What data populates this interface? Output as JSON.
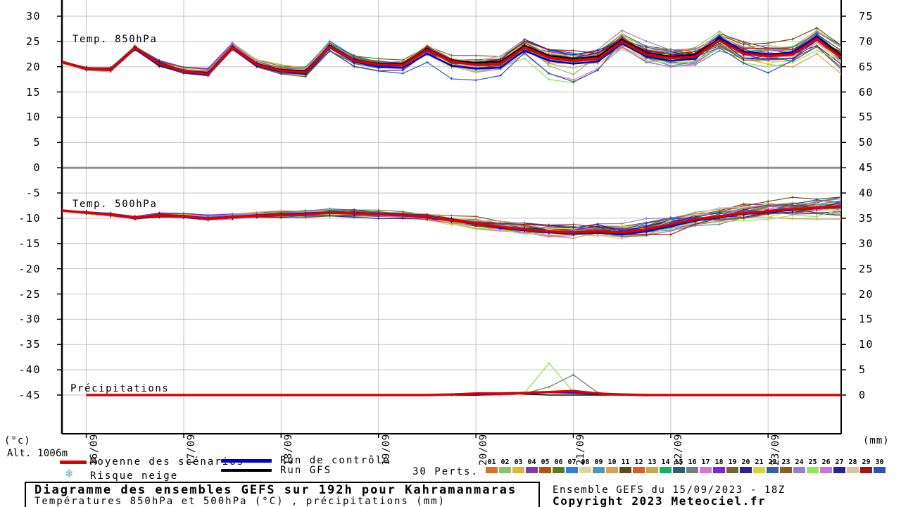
{
  "chart_data": {
    "type": "line",
    "title": "Diagramme des ensembles GEFS sur 192h pour Kahramanmaras",
    "subtitle": "Températures 850hPa et 500hPa (°C) , précipitations (mm)",
    "run_info": "Ensemble GEFS du 15/09/2023 - 18Z",
    "copyright": "Copyright 2023 Meteociel.fr",
    "alt_label": "Alt. 1006m",
    "x_axis": {
      "start": "15/09 18Z",
      "hours_step": 6,
      "hours_max": 192,
      "dates": [
        "16/09",
        "17/09",
        "18/09",
        "19/09",
        "20/09",
        "21/09",
        "22/09",
        "23/09"
      ]
    },
    "left_axis": {
      "unit": "(°c)",
      "ticks": [
        30,
        25,
        20,
        15,
        10,
        5,
        0,
        -5,
        -10,
        -15,
        -20,
        -25,
        -30,
        -35,
        -40,
        -45
      ]
    },
    "right_axis": {
      "unit": "(mm)",
      "ticks": [
        75,
        70,
        65,
        60,
        55,
        50,
        45,
        40,
        35,
        30,
        25,
        20,
        15,
        10,
        5,
        0
      ]
    },
    "panels": [
      {
        "label": "Temp. 850hPa",
        "mean": [
          20.9,
          19.6,
          19.4,
          23.7,
          20.6,
          19.1,
          18.6,
          23.8,
          20.4,
          19.2,
          18.9,
          24.0,
          21.2,
          20.4,
          20.3,
          23.3,
          21.0,
          20.4,
          20.6,
          23.8,
          21.8,
          21.2,
          21.5,
          25.0,
          22.4,
          21.7,
          22.0,
          25.2,
          22.6,
          22.1,
          22.4,
          25.5,
          21.8
        ],
        "control": [
          20.9,
          19.5,
          19.3,
          23.5,
          20.4,
          19.0,
          18.4,
          23.6,
          20.2,
          19.0,
          18.6,
          23.8,
          21.0,
          20.0,
          19.8,
          22.6,
          20.2,
          19.6,
          19.8,
          23.2,
          21.2,
          20.6,
          21.0,
          24.6,
          22.0,
          21.2,
          21.6,
          25.8,
          23.0,
          22.4,
          22.8,
          26.0,
          21.6
        ],
        "gfs": [
          20.9,
          19.7,
          19.5,
          23.9,
          20.8,
          19.2,
          18.8,
          24.0,
          20.6,
          19.4,
          19.2,
          24.2,
          21.4,
          20.6,
          20.5,
          23.6,
          21.2,
          20.8,
          21.0,
          24.2,
          22.2,
          21.6,
          22.0,
          25.4,
          22.8,
          22.0,
          22.4,
          25.6,
          23.0,
          22.5,
          22.8,
          26.0,
          22.3
        ],
        "spread": [
          0.4,
          0.5,
          0.55,
          0.6,
          0.7,
          0.8,
          0.85,
          0.9,
          1.0,
          1.0,
          1.1,
          1.1,
          1.2,
          1.3,
          1.4,
          1.4,
          1.5,
          1.6,
          1.7,
          1.8,
          1.9,
          1.9,
          2.0,
          2.0,
          2.1,
          2.2,
          2.3,
          2.3,
          2.4,
          2.5,
          2.6,
          2.6,
          2.7
        ]
      },
      {
        "label": "Temp. 500hPa",
        "mean": [
          -8.5,
          -8.9,
          -9.3,
          -9.9,
          -9.4,
          -9.6,
          -10.1,
          -9.8,
          -9.5,
          -9.4,
          -9.2,
          -8.9,
          -9.0,
          -9.2,
          -9.4,
          -9.8,
          -10.4,
          -11.0,
          -11.7,
          -12.2,
          -12.6,
          -12.8,
          -12.6,
          -12.8,
          -12.2,
          -11.2,
          -10.2,
          -9.6,
          -9.0,
          -8.6,
          -8.2,
          -7.9,
          -7.7
        ],
        "control": [
          -8.5,
          -8.8,
          -9.2,
          -9.8,
          -9.3,
          -9.5,
          -10.0,
          -9.7,
          -9.4,
          -9.2,
          -9.0,
          -8.8,
          -8.9,
          -9.1,
          -9.3,
          -9.7,
          -10.3,
          -11.1,
          -11.9,
          -12.4,
          -12.8,
          -13.1,
          -12.9,
          -13.2,
          -12.6,
          -11.6,
          -10.5,
          -9.8,
          -9.1,
          -8.7,
          -8.3,
          -8.0,
          -7.8
        ],
        "gfs": [
          -8.5,
          -8.9,
          -9.4,
          -10.0,
          -9.5,
          -9.7,
          -10.2,
          -9.9,
          -9.6,
          -9.5,
          -9.3,
          -9.0,
          -9.1,
          -9.3,
          -9.5,
          -9.9,
          -10.5,
          -11.2,
          -11.8,
          -12.3,
          -12.7,
          -12.9,
          -12.7,
          -12.9,
          -12.3,
          -11.3,
          -10.3,
          -9.7,
          -9.2,
          -8.8,
          -8.4,
          -8.0,
          -7.6
        ],
        "spread": [
          0.3,
          0.35,
          0.4,
          0.45,
          0.5,
          0.55,
          0.6,
          0.65,
          0.7,
          0.75,
          0.8,
          0.8,
          0.85,
          0.9,
          0.95,
          1.0,
          1.1,
          1.2,
          1.3,
          1.4,
          1.5,
          1.5,
          1.6,
          1.6,
          1.7,
          1.7,
          1.8,
          1.8,
          1.9,
          1.9,
          2.0,
          2.0,
          2.1
        ]
      },
      {
        "label": "Précipitations",
        "mean": [
          0,
          0,
          0,
          0,
          0,
          0,
          0,
          0,
          0,
          0,
          0,
          0,
          0,
          0,
          0,
          0,
          0.1,
          0.3,
          0.3,
          0.4,
          0.6,
          0.8,
          0.3,
          0.1,
          0,
          0,
          0,
          0,
          0,
          0,
          0,
          0,
          0
        ],
        "control": [
          0,
          0,
          0,
          0,
          0,
          0,
          0,
          0,
          0,
          0,
          0,
          0,
          0,
          0,
          0,
          0,
          0,
          0,
          0.2,
          0.3,
          0.5,
          0.4,
          0.2,
          0,
          0,
          0,
          0,
          0,
          0,
          0,
          0,
          0,
          0
        ],
        "gfs": [
          0,
          0,
          0,
          0,
          0,
          0,
          0,
          0,
          0,
          0,
          0,
          0,
          0,
          0,
          0,
          0,
          0,
          0.4,
          0.4,
          0.2,
          0,
          0,
          0,
          0,
          0,
          0,
          0,
          0,
          0,
          0,
          0,
          0,
          0
        ]
      }
    ],
    "outliers": [
      {
        "panel": 0,
        "member": 29,
        "center": 16,
        "amplitude": -3.4,
        "width": 2.6
      },
      {
        "panel": 0,
        "member": 29,
        "center": 21,
        "amplitude": -4.0,
        "width": 1.4
      },
      {
        "panel": 0,
        "member": 29,
        "center": 29,
        "amplitude": -3.2,
        "width": 2.0
      },
      {
        "panel": 0,
        "member": 24,
        "center": 20.5,
        "amplitude": -4.6,
        "width": 1.2
      },
      {
        "panel": 0,
        "member": 16,
        "center": 21,
        "amplitude": -3.0,
        "width": 1.4
      },
      {
        "panel": 0,
        "member": 1,
        "center": 20.5,
        "amplitude": -3.6,
        "width": 1.1
      },
      {
        "panel": 1,
        "member": 28,
        "center": 25,
        "amplitude": -2.6,
        "width": 1.6
      },
      {
        "panel": 1,
        "member": 27,
        "center": 30,
        "amplitude": 1.6,
        "width": 3.0
      },
      {
        "panel": 1,
        "member": 7,
        "center": 31,
        "amplitude": 1.8,
        "width": 2.5
      }
    ],
    "precip_members": [
      {
        "member": 24,
        "values": [
          [
            19,
            0.4
          ],
          [
            20,
            6.3
          ],
          [
            21,
            0.6
          ]
        ]
      },
      {
        "member": 15,
        "values": [
          [
            19,
            0.3
          ],
          [
            20,
            1.6
          ],
          [
            21,
            4.0
          ],
          [
            22,
            0.5
          ]
        ]
      }
    ],
    "members": [
      {
        "id": "01",
        "color": "#d4722c"
      },
      {
        "id": "02",
        "color": "#8fbf6f"
      },
      {
        "id": "03",
        "color": "#d9b93a"
      },
      {
        "id": "04",
        "color": "#7a3fa0"
      },
      {
        "id": "05",
        "color": "#b45413"
      },
      {
        "id": "06",
        "color": "#5f7a1e"
      },
      {
        "id": "07",
        "color": "#2b7fd4"
      },
      {
        "id": "08",
        "color": "#dfd3a2"
      },
      {
        "id": "09",
        "color": "#4f93c0"
      },
      {
        "id": "10",
        "color": "#d9a050"
      },
      {
        "id": "11",
        "color": "#5f4f13"
      },
      {
        "id": "12",
        "color": "#d95f26"
      },
      {
        "id": "13",
        "color": "#c8a84b"
      },
      {
        "id": "14",
        "color": "#17b264"
      },
      {
        "id": "15",
        "color": "#2f5f6f"
      },
      {
        "id": "16",
        "color": "#6f7f7f"
      },
      {
        "id": "17",
        "color": "#d973d9"
      },
      {
        "id": "18",
        "color": "#7a26d9"
      },
      {
        "id": "19",
        "color": "#73652f"
      },
      {
        "id": "20",
        "color": "#2f2384"
      },
      {
        "id": "21",
        "color": "#d9d33a"
      },
      {
        "id": "22",
        "color": "#35629f"
      },
      {
        "id": "23",
        "color": "#8a5f26"
      },
      {
        "id": "24",
        "color": "#8f84cc"
      },
      {
        "id": "25",
        "color": "#93e556"
      },
      {
        "id": "26",
        "color": "#c877d4"
      },
      {
        "id": "27",
        "color": "#2323a0"
      },
      {
        "id": "28",
        "color": "#d3c49c"
      },
      {
        "id": "29",
        "color": "#9f1717"
      },
      {
        "id": "30",
        "color": "#2f55b2"
      }
    ],
    "colors": {
      "mean": "#dd0000",
      "control": "#0000cc",
      "gfs": "#000000",
      "grid": "#c3c3c3",
      "zero_line": "#8f8f8f",
      "frame": "#000000",
      "snow": "#5fa8d9"
    }
  },
  "legend": {
    "mean": "Moyenne des scénarios",
    "control": "Run de contrôle",
    "gfs": "Run GFS",
    "perts": "30 Perts.",
    "snow": "Risque neige"
  }
}
